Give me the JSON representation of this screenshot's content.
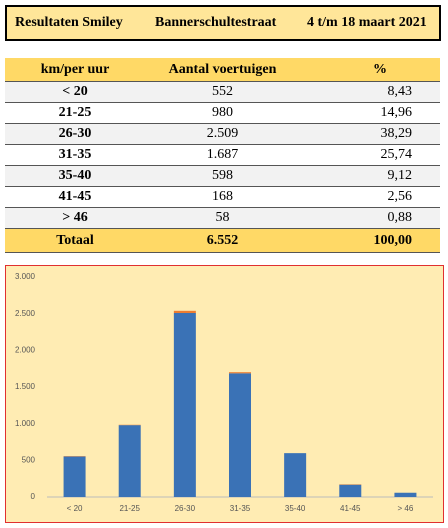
{
  "header": {
    "title": "Resultaten Smiley",
    "street": "Bannerschultestraat",
    "period": "4 t/m 18 maart 2021"
  },
  "table": {
    "columns": [
      "km/per uur",
      "Aantal voertuigen",
      "%"
    ],
    "rows": [
      [
        "<  20",
        "552",
        "8,43"
      ],
      [
        "21-25",
        "980",
        "14,96"
      ],
      [
        "26-30",
        "2.509",
        "38,29"
      ],
      [
        "31-35",
        "1.687",
        "25,74"
      ],
      [
        "35-40",
        "598",
        "9,12"
      ],
      [
        "41-45",
        "168",
        "2,56"
      ],
      [
        ">  46",
        "58",
        "0,88"
      ]
    ],
    "total": [
      "Totaal",
      "6.552",
      "100,00"
    ]
  },
  "chart_data": {
    "type": "bar",
    "stacked": true,
    "categories": [
      "< 20",
      "21-25",
      "26-30",
      "31-35",
      "35-40",
      "41-45",
      "> 46"
    ],
    "series": [
      {
        "color": "#3a72b6",
        "values": [
          552,
          980,
          2509,
          1687,
          598,
          168,
          58
        ]
      },
      {
        "color": "#ed7d31",
        "values": [
          5,
          5,
          30,
          15,
          0,
          5,
          0
        ]
      }
    ],
    "ylim": [
      0,
      3000
    ],
    "yticks": [
      0,
      500,
      {
        "value": 1000,
        "label": "1.000"
      },
      {
        "value": 1500,
        "label": "1.500"
      },
      {
        "value": 2000,
        "label": "2.000"
      },
      {
        "value": 2500,
        "label": "2.500"
      },
      {
        "value": 3000,
        "label": "3.000"
      }
    ]
  }
}
